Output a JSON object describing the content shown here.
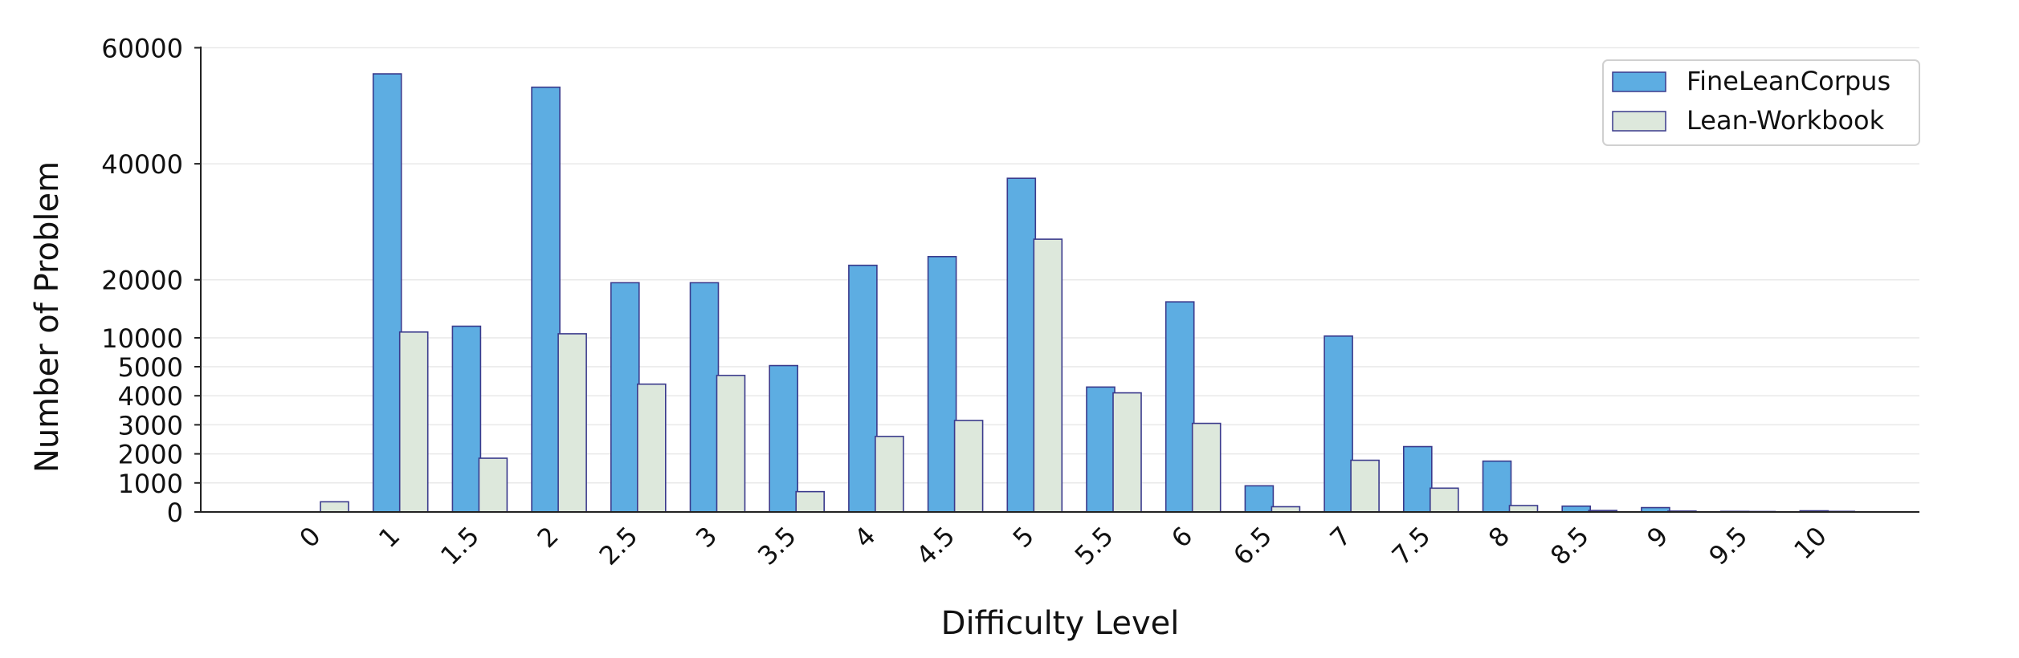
{
  "chart_data": {
    "type": "bar",
    "xlabel": "Difficulty Level",
    "ylabel": "Number of Problem",
    "categories": [
      "0",
      "1",
      "1.5",
      "2",
      "2.5",
      "3",
      "3.5",
      "4",
      "4.5",
      "5",
      "5.5",
      "6",
      "6.5",
      "7",
      "7.5",
      "8",
      "8.5",
      "9",
      "9.5",
      "10"
    ],
    "y_ticks": [
      "0",
      "1000",
      "2000",
      "3000",
      "4000",
      "5000",
      "10000",
      "20000",
      "40000",
      "60000"
    ],
    "y_scale": "piecewise: linear 0–5000 on lower band, 10000–60000 spaced above",
    "series": [
      {
        "name": "FineLeanCorpus",
        "color": "#5DADE2",
        "values": [
          0,
          55500,
          12000,
          53200,
          19500,
          19500,
          5200,
          22500,
          24000,
          37500,
          4300,
          16200,
          900,
          10300,
          2250,
          1750,
          200,
          150,
          20,
          40
        ]
      },
      {
        "name": "Lean-Workbook",
        "color": "#DDE8DC",
        "values": [
          350,
          11000,
          1850,
          10700,
          4400,
          4700,
          700,
          2600,
          3150,
          27000,
          4100,
          3050,
          180,
          1780,
          820,
          220,
          50,
          30,
          15,
          20
        ]
      }
    ],
    "legend_position": "top-right",
    "grid": "horizontal light",
    "bar_edge_color": "#3A3A8C"
  }
}
